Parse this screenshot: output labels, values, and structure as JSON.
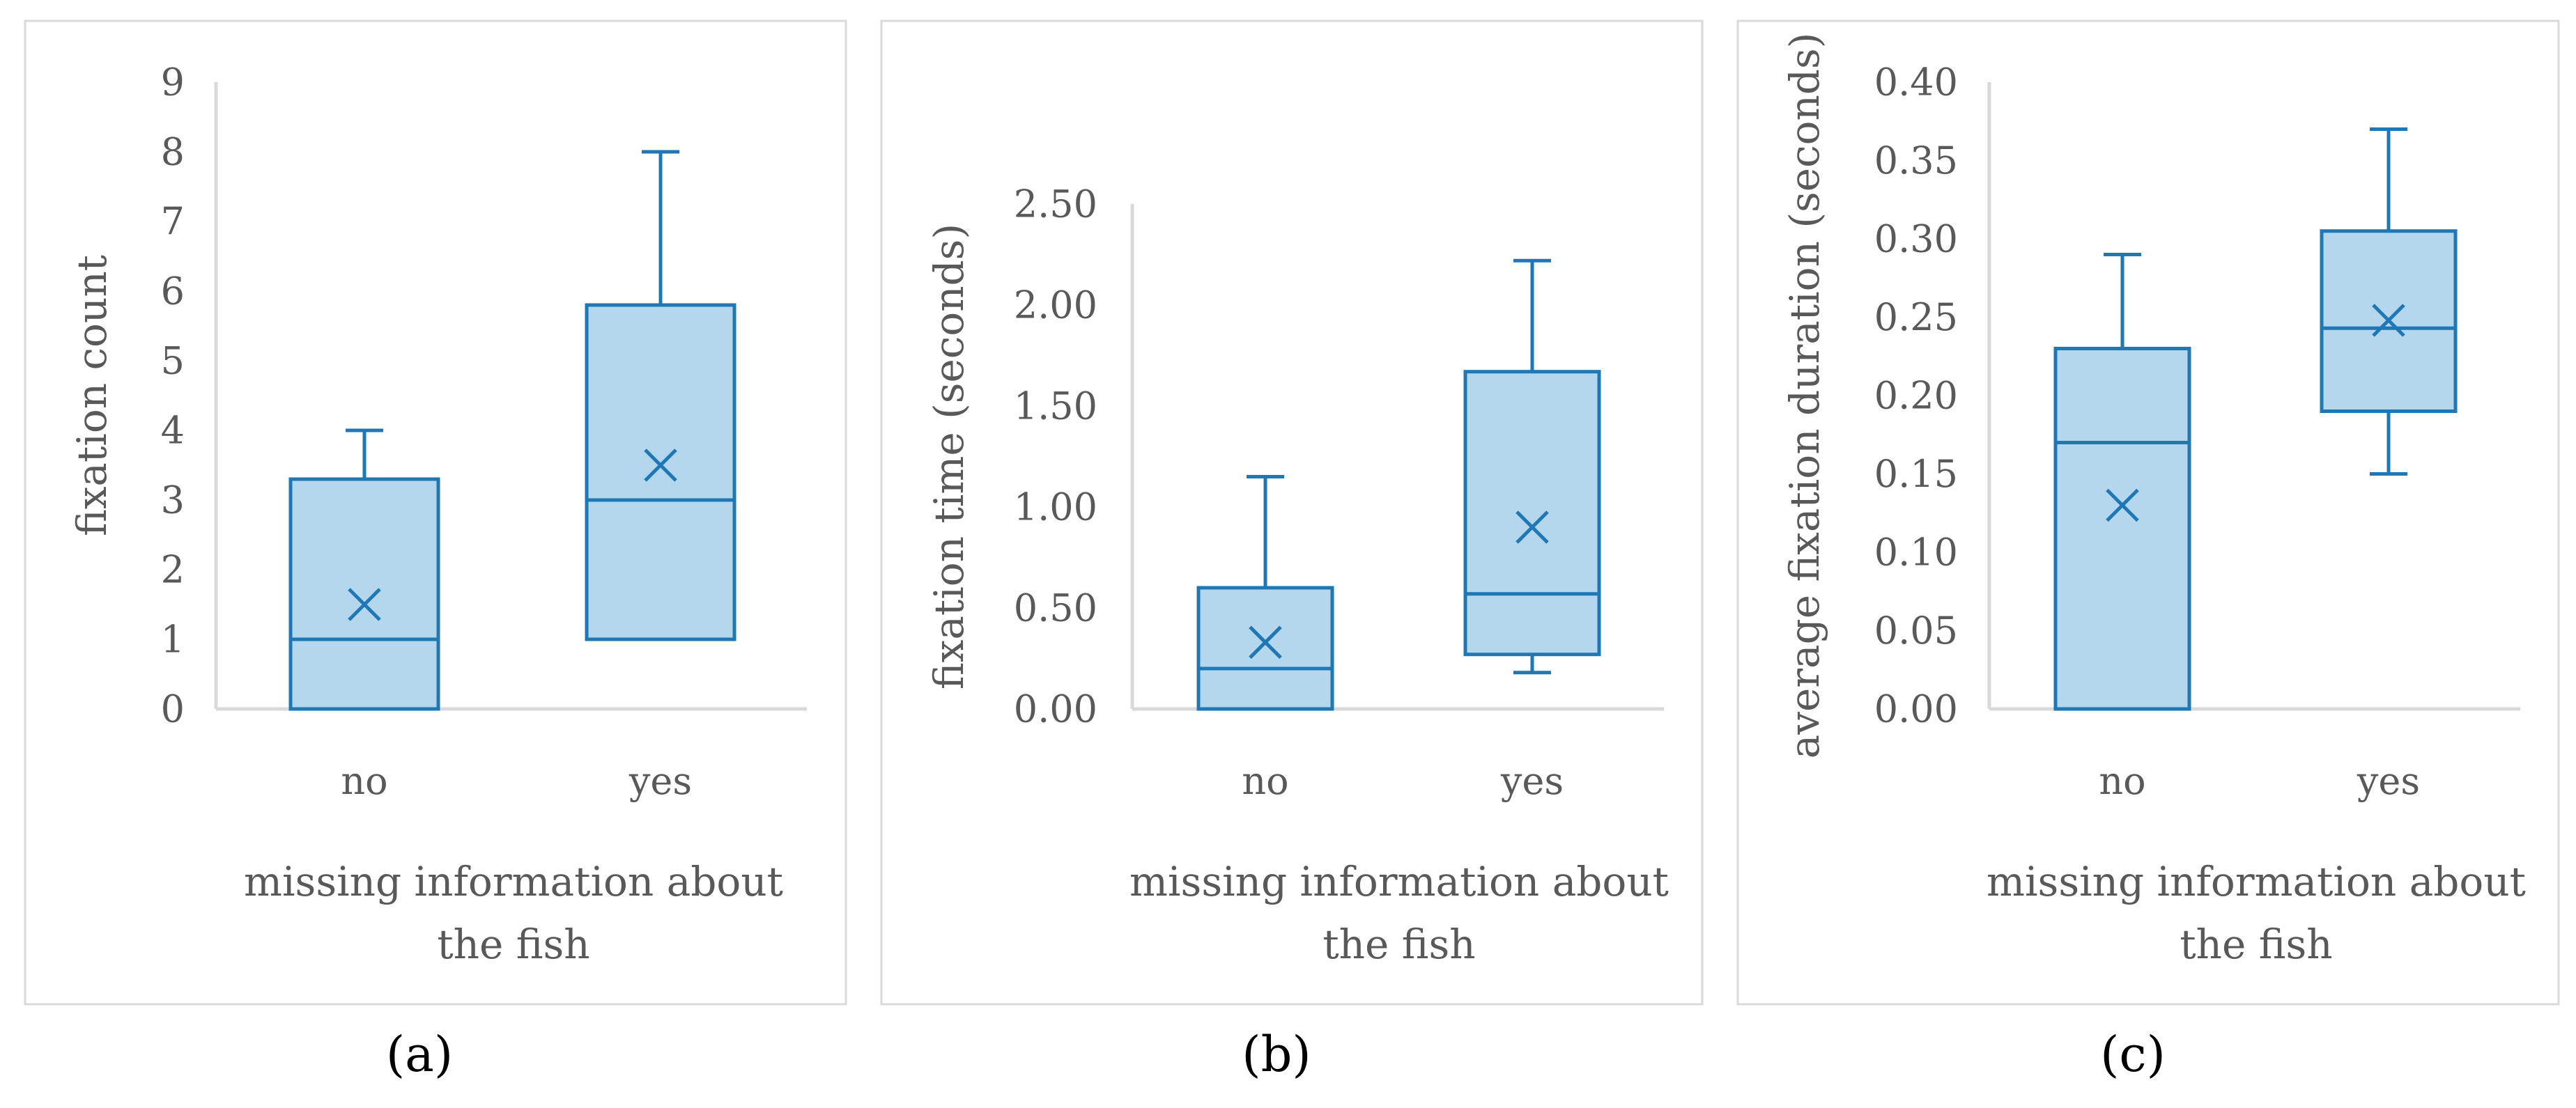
{
  "colors": {
    "box_fill": "#b4d7ee",
    "box_stroke": "#1f77b4",
    "axis": "#d9d9d9",
    "text": "#595959"
  },
  "chart_data": [
    {
      "type": "box",
      "panel_label": "(a)",
      "ylabel": "fixation count",
      "xlabel_lines": [
        "missing information about",
        "the fish"
      ],
      "ylim": [
        0,
        9
      ],
      "yticks": [
        0,
        1,
        2,
        3,
        4,
        5,
        6,
        7,
        8,
        9
      ],
      "ytick_labels": [
        "0",
        "1",
        "2",
        "3",
        "4",
        "5",
        "6",
        "7",
        "8",
        "9"
      ],
      "categories": [
        "no",
        "yes"
      ],
      "boxes": [
        {
          "min": 0,
          "q1": 0,
          "median": 1,
          "q3": 3.3,
          "max": 4,
          "mean": 1.5
        },
        {
          "min": 1,
          "q1": 1,
          "median": 3,
          "q3": 5.8,
          "max": 8,
          "mean": 3.5
        }
      ]
    },
    {
      "type": "box",
      "panel_label": "(b)",
      "ylabel": "fixation time (seconds)",
      "xlabel_lines": [
        "missing information about",
        "the fish"
      ],
      "ylim": [
        0,
        2.5
      ],
      "yticks": [
        0,
        0.5,
        1,
        1.5,
        2,
        2.5
      ],
      "ytick_labels": [
        "0.00",
        "0.50",
        "1.00",
        "1.50",
        "2.00",
        "2.50"
      ],
      "categories": [
        "no",
        "yes"
      ],
      "boxes": [
        {
          "min": 0,
          "q1": 0,
          "median": 0.2,
          "q3": 0.6,
          "max": 1.15,
          "mean": 0.33
        },
        {
          "min": 0.18,
          "q1": 0.27,
          "median": 0.57,
          "q3": 1.67,
          "max": 2.22,
          "mean": 0.9
        }
      ]
    },
    {
      "type": "box",
      "panel_label": "(c)",
      "ylabel": "average fixation duration (seconds)",
      "xlabel_lines": [
        "missing information about",
        "the fish"
      ],
      "ylim": [
        0,
        0.4
      ],
      "yticks": [
        0,
        0.05,
        0.1,
        0.15,
        0.2,
        0.25,
        0.3,
        0.35,
        0.4
      ],
      "ytick_labels": [
        "0.00",
        "0.05",
        "0.10",
        "0.15",
        "0.20",
        "0.25",
        "0.30",
        "0.35",
        "0.40"
      ],
      "categories": [
        "no",
        "yes"
      ],
      "boxes": [
        {
          "min": 0,
          "q1": 0,
          "median": 0.17,
          "q3": 0.23,
          "max": 0.29,
          "mean": 0.13
        },
        {
          "min": 0.15,
          "q1": 0.19,
          "median": 0.243,
          "q3": 0.305,
          "max": 0.37,
          "mean": 0.248
        }
      ]
    }
  ]
}
